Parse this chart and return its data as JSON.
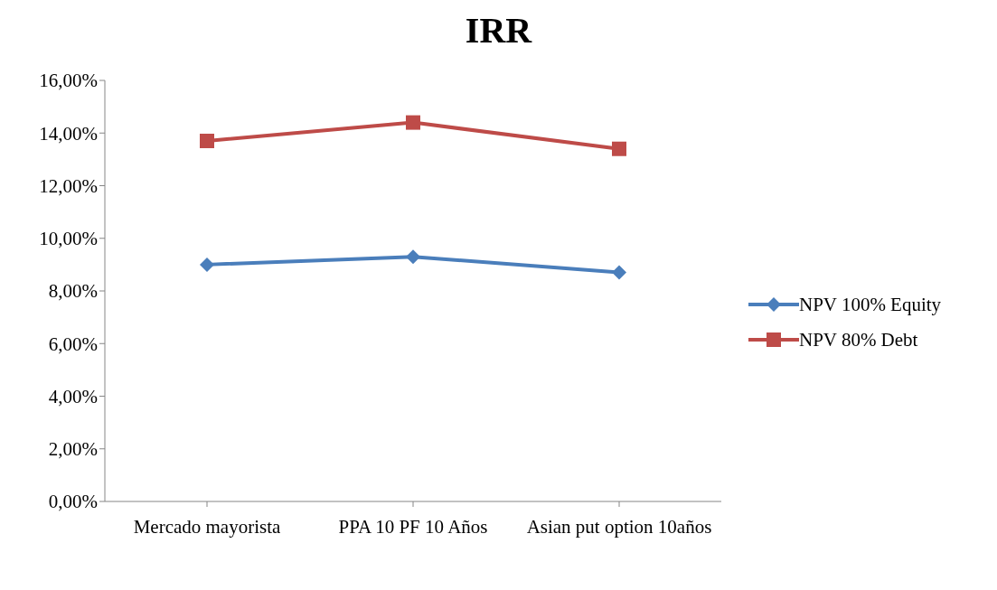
{
  "chart_data": {
    "type": "line",
    "title": "IRR",
    "categories": [
      "Mercado mayorista",
      "PPA 10 PF 10 Años",
      "Asian put option 10años"
    ],
    "series": [
      {
        "name": "NPV 100% Equity",
        "color": "#4a7ebb",
        "values": [
          0.09,
          0.093,
          0.087
        ],
        "marker": "diamond"
      },
      {
        "name": "NPV 80% Debt",
        "color": "#be4b48",
        "values": [
          0.137,
          0.144,
          0.134
        ],
        "marker": "square"
      }
    ],
    "ylim": [
      0,
      0.16
    ],
    "yticks": [
      {
        "value": 0,
        "label": "0,00%"
      },
      {
        "value": 0.02,
        "label": "2,00%"
      },
      {
        "value": 0.04,
        "label": "4,00%"
      },
      {
        "value": 0.06,
        "label": "6,00%"
      },
      {
        "value": 0.08,
        "label": "8,00%"
      },
      {
        "value": 0.1,
        "label": "10,00%"
      },
      {
        "value": 0.12,
        "label": "12,00%"
      },
      {
        "value": 0.14,
        "label": "14,00%"
      },
      {
        "value": 0.16,
        "label": "16,00%"
      }
    ],
    "legend": "right",
    "grid": false
  }
}
